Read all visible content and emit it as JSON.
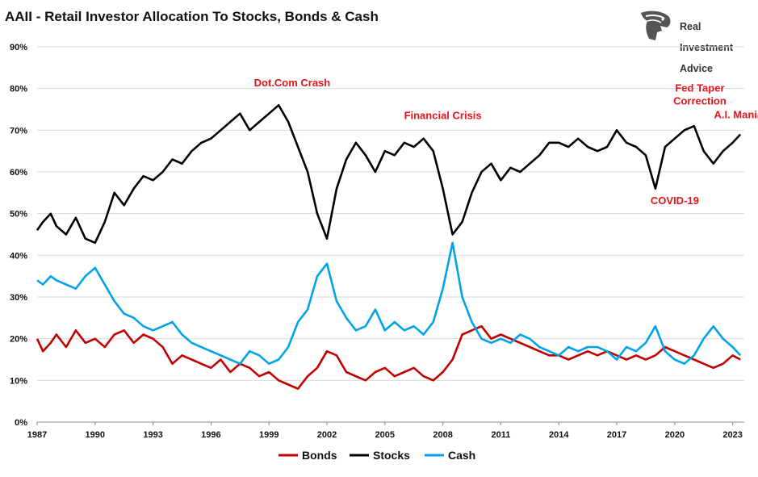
{
  "title": "AAII - Retail Investor Allocation To Stocks, Bonds & Cash",
  "logo": {
    "lines": [
      "Real",
      "Investment",
      "Advice"
    ],
    "icon": "eagle-head-icon"
  },
  "chart_data": {
    "type": "line",
    "title": "AAII - Retail Investor Allocation To Stocks, Bonds & Cash",
    "xlim": [
      1987,
      2023.6
    ],
    "ylim": [
      0,
      90
    ],
    "y_ticks": [
      "0%",
      "10%",
      "20%",
      "30%",
      "40%",
      "50%",
      "60%",
      "70%",
      "80%",
      "90%"
    ],
    "x_ticks": [
      "1987",
      "1990",
      "1993",
      "1996",
      "1999",
      "2002",
      "2005",
      "2008",
      "2011",
      "2014",
      "2017",
      "2020",
      "2023"
    ],
    "grid": "horizontal",
    "legend_placement": "bottom",
    "series": [
      {
        "name": "Bonds",
        "color": "#c00000",
        "x": [
          1987.0,
          1987.3,
          1987.7,
          1988.0,
          1988.5,
          1989.0,
          1989.5,
          1990.0,
          1990.5,
          1991.0,
          1991.5,
          1992.0,
          1992.5,
          1993.0,
          1993.5,
          1994.0,
          1994.5,
          1995.0,
          1995.5,
          1996.0,
          1996.5,
          1997.0,
          1997.5,
          1998.0,
          1998.5,
          1999.0,
          1999.5,
          2000.0,
          2000.5,
          2001.0,
          2001.5,
          2002.0,
          2002.5,
          2003.0,
          2003.5,
          2004.0,
          2004.5,
          2005.0,
          2005.5,
          2006.0,
          2006.5,
          2007.0,
          2007.5,
          2008.0,
          2008.5,
          2009.0,
          2009.5,
          2010.0,
          2010.5,
          2011.0,
          2011.5,
          2012.0,
          2012.5,
          2013.0,
          2013.5,
          2014.0,
          2014.5,
          2015.0,
          2015.5,
          2016.0,
          2016.5,
          2017.0,
          2017.5,
          2018.0,
          2018.5,
          2019.0,
          2019.5,
          2020.0,
          2020.5,
          2021.0,
          2021.5,
          2022.0,
          2022.5,
          2023.0,
          2023.4
        ],
        "values": [
          20,
          17,
          19,
          21,
          18,
          22,
          19,
          20,
          18,
          21,
          22,
          19,
          21,
          20,
          18,
          14,
          16,
          15,
          14,
          13,
          15,
          12,
          14,
          13,
          11,
          12,
          10,
          9,
          8,
          11,
          13,
          17,
          16,
          12,
          11,
          10,
          12,
          13,
          11,
          12,
          13,
          11,
          10,
          12,
          15,
          21,
          22,
          23,
          20,
          21,
          20,
          19,
          18,
          17,
          16,
          16,
          15,
          16,
          17,
          16,
          17,
          16,
          15,
          16,
          15,
          16,
          18,
          17,
          16,
          15,
          14,
          13,
          14,
          16,
          15
        ]
      },
      {
        "name": "Stocks",
        "color": "#000000",
        "x": [
          1987.0,
          1987.3,
          1987.7,
          1988.0,
          1988.5,
          1989.0,
          1989.5,
          1990.0,
          1990.5,
          1991.0,
          1991.5,
          1992.0,
          1992.5,
          1993.0,
          1993.5,
          1994.0,
          1994.5,
          1995.0,
          1995.5,
          1996.0,
          1996.5,
          1997.0,
          1997.5,
          1998.0,
          1998.5,
          1999.0,
          1999.5,
          2000.0,
          2000.5,
          2001.0,
          2001.5,
          2002.0,
          2002.5,
          2003.0,
          2003.5,
          2004.0,
          2004.5,
          2005.0,
          2005.5,
          2006.0,
          2006.5,
          2007.0,
          2007.5,
          2008.0,
          2008.5,
          2009.0,
          2009.5,
          2010.0,
          2010.5,
          2011.0,
          2011.5,
          2012.0,
          2012.5,
          2013.0,
          2013.5,
          2014.0,
          2014.5,
          2015.0,
          2015.5,
          2016.0,
          2016.5,
          2017.0,
          2017.5,
          2018.0,
          2018.5,
          2019.0,
          2019.5,
          2020.0,
          2020.5,
          2021.0,
          2021.5,
          2022.0,
          2022.5,
          2023.0,
          2023.4
        ],
        "values": [
          46,
          48,
          50,
          47,
          45,
          49,
          44,
          43,
          48,
          55,
          52,
          56,
          59,
          58,
          60,
          63,
          62,
          65,
          67,
          68,
          70,
          72,
          74,
          70,
          72,
          74,
          76,
          72,
          66,
          60,
          50,
          44,
          56,
          63,
          67,
          64,
          60,
          65,
          64,
          67,
          66,
          68,
          65,
          56,
          45,
          48,
          55,
          60,
          62,
          58,
          61,
          60,
          62,
          64,
          67,
          67,
          66,
          68,
          66,
          65,
          66,
          70,
          67,
          66,
          64,
          56,
          66,
          68,
          70,
          71,
          65,
          62,
          65,
          67,
          69
        ]
      },
      {
        "name": "Cash",
        "color": "#00a3e8",
        "x": [
          1987.0,
          1987.3,
          1987.7,
          1988.0,
          1988.5,
          1989.0,
          1989.5,
          1990.0,
          1990.5,
          1991.0,
          1991.5,
          1992.0,
          1992.5,
          1993.0,
          1993.5,
          1994.0,
          1994.5,
          1995.0,
          1995.5,
          1996.0,
          1996.5,
          1997.0,
          1997.5,
          1998.0,
          1998.5,
          1999.0,
          1999.5,
          2000.0,
          2000.5,
          2001.0,
          2001.5,
          2002.0,
          2002.5,
          2003.0,
          2003.5,
          2004.0,
          2004.5,
          2005.0,
          2005.5,
          2006.0,
          2006.5,
          2007.0,
          2007.5,
          2008.0,
          2008.5,
          2009.0,
          2009.5,
          2010.0,
          2010.5,
          2011.0,
          2011.5,
          2012.0,
          2012.5,
          2013.0,
          2013.5,
          2014.0,
          2014.5,
          2015.0,
          2015.5,
          2016.0,
          2016.5,
          2017.0,
          2017.5,
          2018.0,
          2018.5,
          2019.0,
          2019.5,
          2020.0,
          2020.5,
          2021.0,
          2021.5,
          2022.0,
          2022.5,
          2023.0,
          2023.4
        ],
        "values": [
          34,
          33,
          35,
          34,
          33,
          32,
          35,
          37,
          33,
          29,
          26,
          25,
          23,
          22,
          23,
          24,
          21,
          19,
          18,
          17,
          16,
          15,
          14,
          17,
          16,
          14,
          15,
          18,
          24,
          27,
          35,
          38,
          29,
          25,
          22,
          23,
          27,
          22,
          24,
          22,
          23,
          21,
          24,
          32,
          43,
          30,
          24,
          20,
          19,
          20,
          19,
          21,
          20,
          18,
          17,
          16,
          18,
          17,
          18,
          18,
          17,
          15,
          18,
          17,
          19,
          23,
          17,
          15,
          14,
          16,
          20,
          23,
          20,
          18,
          16
        ]
      }
    ],
    "annotations": [
      {
        "text": "Dot.Com Crash",
        "x": 2000.2,
        "y": 80.5
      },
      {
        "text": "Financial Crisis",
        "x": 2008.0,
        "y": 72.7
      },
      {
        "text": "Fed Taper",
        "x": 2021.3,
        "y": 79.3
      },
      {
        "text": "Correction",
        "x": 2021.3,
        "y": 76.2
      },
      {
        "text": "A.I. Mania",
        "x": 2023.3,
        "y": 72.9
      },
      {
        "text": "COVID-19",
        "x": 2020.0,
        "y": 52.3
      }
    ]
  }
}
